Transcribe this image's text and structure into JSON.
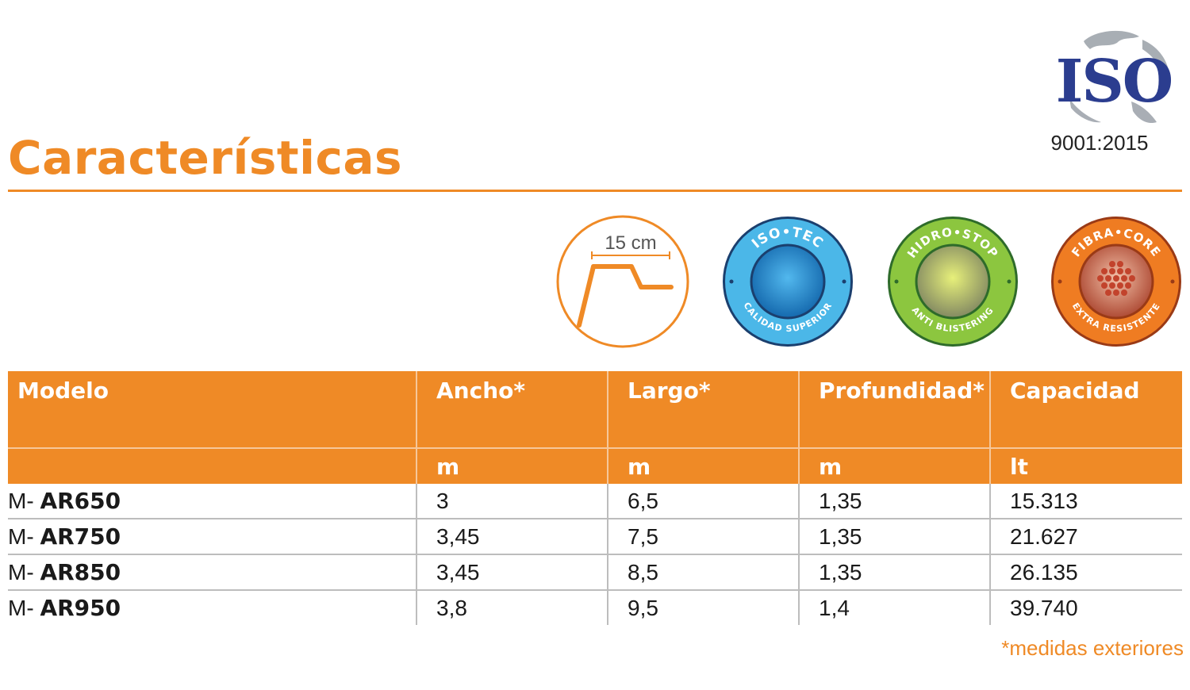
{
  "page": {
    "title": "Características",
    "footnote": "*medidas exteriores"
  },
  "iso_logo": {
    "text": "ISO",
    "code": "9001:2015",
    "color": "#2b3d8f"
  },
  "badges": [
    {
      "name": "edge-diagram",
      "label": "15 cm",
      "color": "#ef8a26"
    },
    {
      "name": "iso-tec",
      "top": "ISO•TEC",
      "bottom": "CALIDAD SUPERIOR",
      "ring_color": "#4bb7e8",
      "core_color": "#1f7fc4"
    },
    {
      "name": "hidro-stop",
      "top": "HIDRO•STOP",
      "bottom": "ANTI BLISTERING",
      "ring_color": "#8cc63f",
      "core_color": "#c9d86a"
    },
    {
      "name": "fibra-core",
      "top": "FIBRA•CORE",
      "bottom": "EXTRA RESISTENTE",
      "ring_color": "#ef7c22",
      "core_color": "#c0543a"
    }
  ],
  "table": {
    "headers": [
      "Modelo",
      "Ancho*",
      "Largo*",
      "Profundidad*",
      "Capacidad"
    ],
    "units": [
      "",
      "m",
      "m",
      "m",
      "lt"
    ],
    "rows": [
      {
        "prefix": "M- ",
        "model": "AR650",
        "ancho": "3",
        "largo": "6,5",
        "profundidad": "1,35",
        "capacidad": "15.313"
      },
      {
        "prefix": "M- ",
        "model": "AR750",
        "ancho": "3,45",
        "largo": "7,5",
        "profundidad": "1,35",
        "capacidad": "21.627"
      },
      {
        "prefix": "M- ",
        "model": "AR850",
        "ancho": "3,45",
        "largo": "8,5",
        "profundidad": "1,35",
        "capacidad": "26.135"
      },
      {
        "prefix": "M- ",
        "model": "AR950",
        "ancho": "3,8",
        "largo": "9,5",
        "profundidad": "1,4",
        "capacidad": "39.740"
      }
    ]
  },
  "colors": {
    "accent": "#ef8a26",
    "header_text": "#ffffff",
    "row_divider": "#bdbdbd"
  }
}
